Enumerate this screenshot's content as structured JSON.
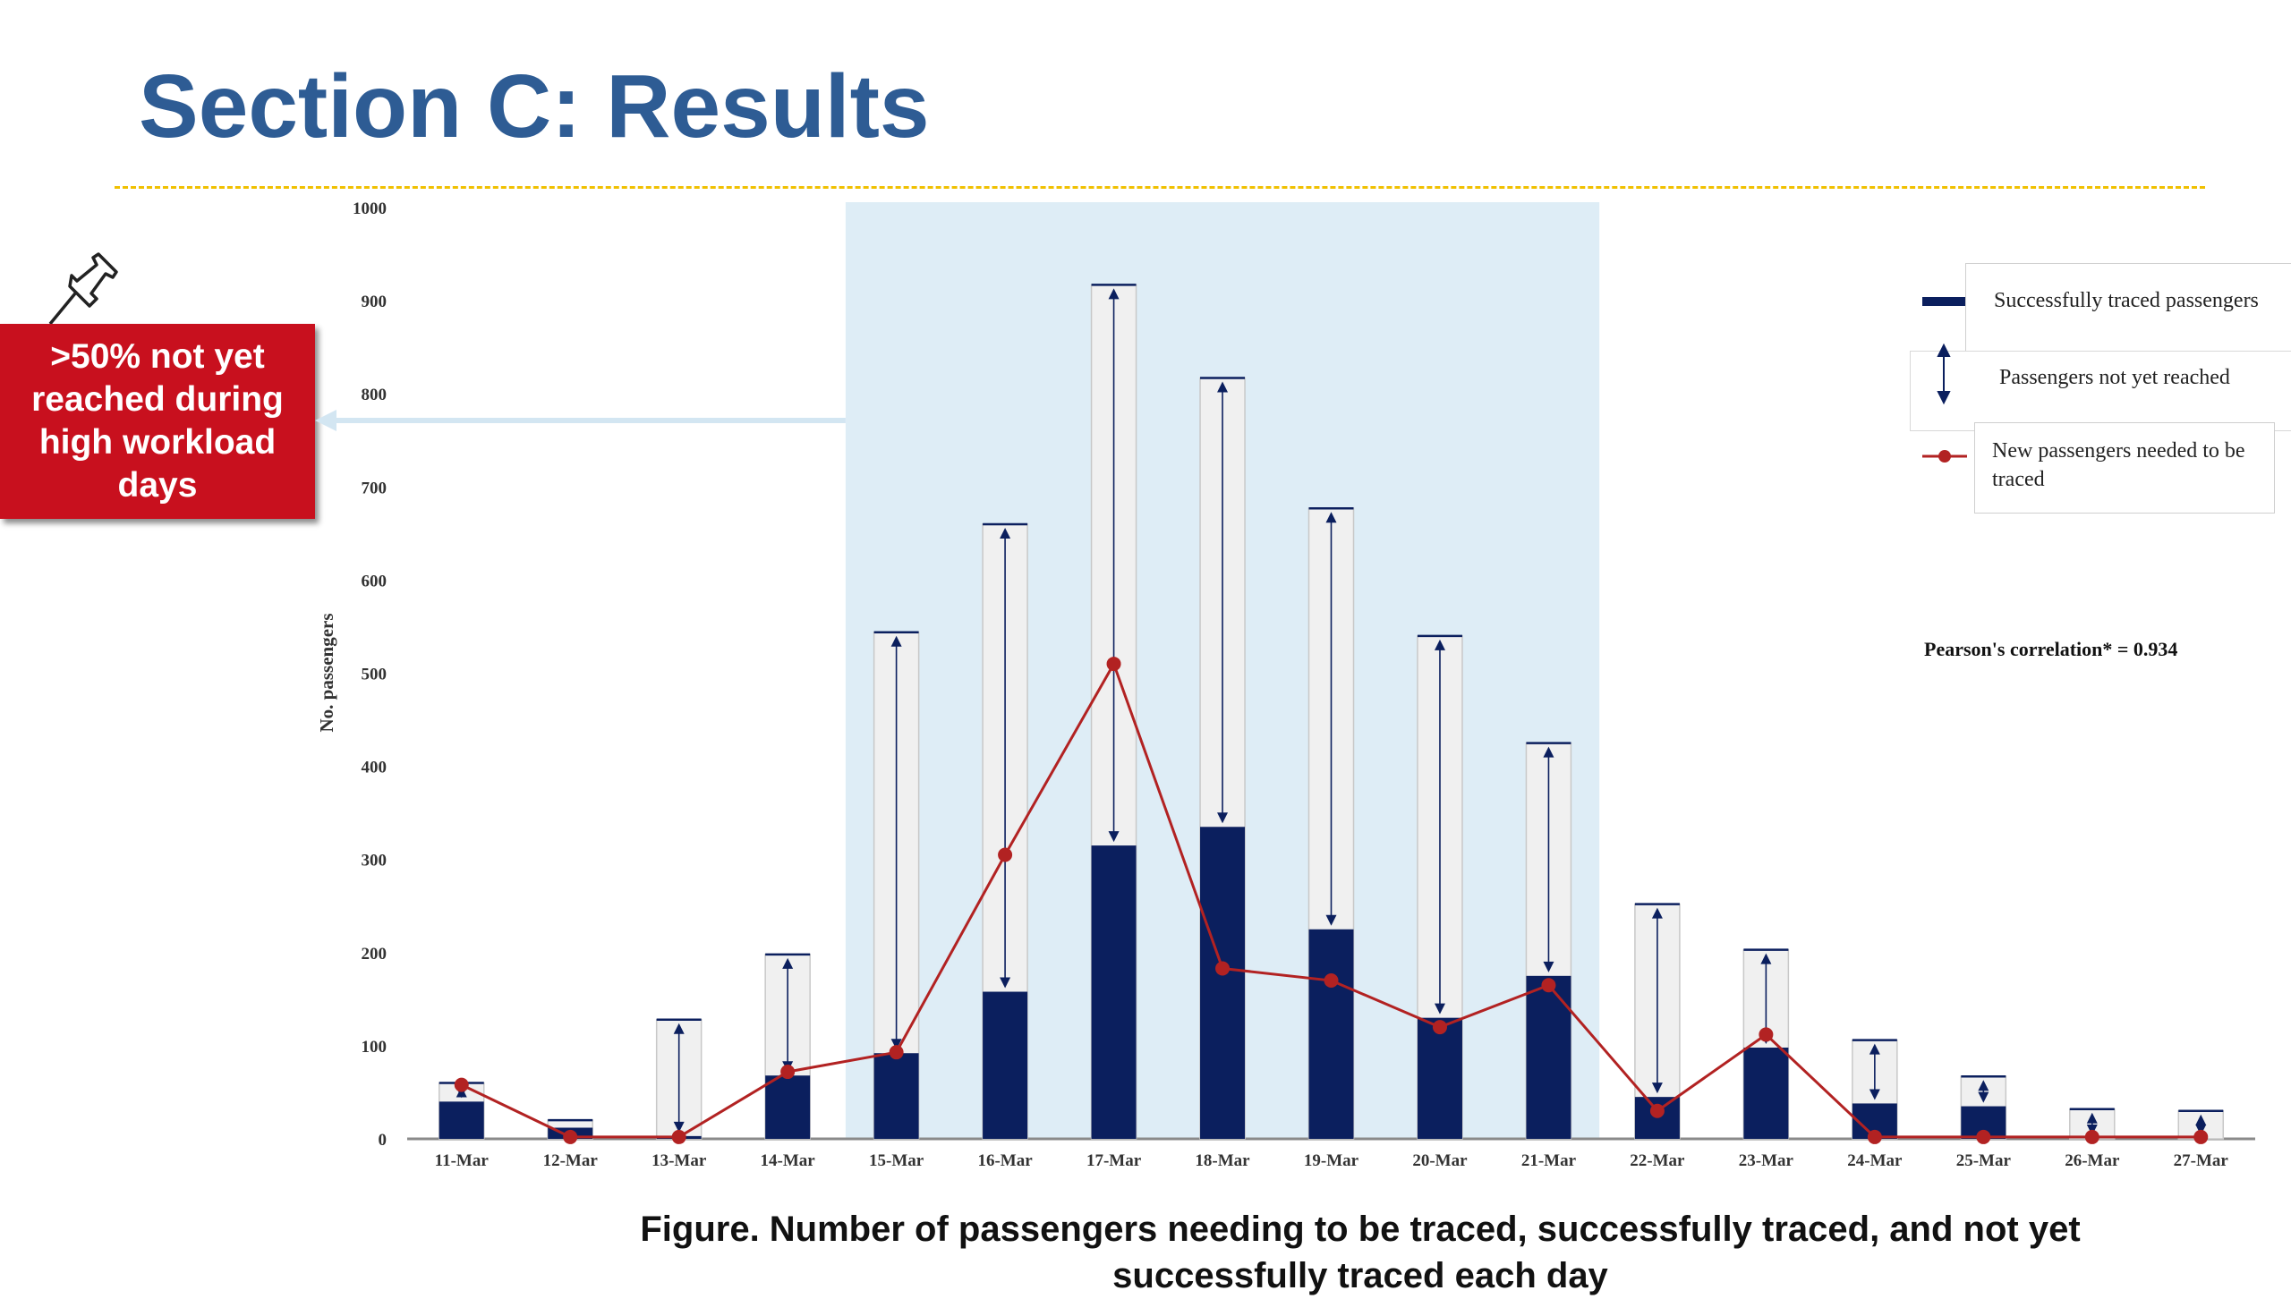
{
  "slide": {
    "title": "Section C: Results",
    "callout": ">50% not yet reached during high workload days",
    "caption": "Figure. Number of passengers needing to be traced, successfully traced, and not yet successfully traced each day",
    "pearson": "Pearson's correlation* = 0.934"
  },
  "colors": {
    "title": "#2e5c94",
    "divider": "#f0c000",
    "callout": "#c8101e",
    "highlight": "#deedf6",
    "traced_bar": "#0b1f5e",
    "total_bar": "#f0f0f0",
    "line": "#b22222",
    "arrow_color": "#0b1f5e"
  },
  "chart_data": {
    "type": "bar",
    "categories": [
      "11-Mar",
      "12-Mar",
      "13-Mar",
      "14-Mar",
      "15-Mar",
      "16-Mar",
      "17-Mar",
      "18-Mar",
      "19-Mar",
      "20-Mar",
      "21-Mar",
      "22-Mar",
      "23-Mar",
      "24-Mar",
      "25-Mar",
      "26-Mar",
      "27-Mar"
    ],
    "ylabel": "No. passengers",
    "ylim": [
      0,
      1000
    ],
    "yticks": [
      0,
      100,
      200,
      300,
      400,
      500,
      600,
      700,
      800,
      900,
      1000
    ],
    "series": [
      {
        "name": "Successfully traced passengers",
        "kind": "bar",
        "values": [
          40,
          12,
          3,
          68,
          92,
          158,
          315,
          335,
          225,
          130,
          175,
          45,
          98,
          38,
          35,
          0,
          0
        ]
      },
      {
        "name": "Passengers not yet reached",
        "kind": "range",
        "values": [
          20,
          8,
          125,
          130,
          452,
          502,
          602,
          482,
          452,
          410,
          250,
          207,
          105,
          68,
          32,
          32,
          30
        ]
      },
      {
        "name": "New passengers needed to be traced",
        "kind": "line",
        "values": [
          58,
          2,
          2,
          72,
          93,
          305,
          510,
          183,
          170,
          120,
          165,
          30,
          112,
          2,
          2,
          2,
          2
        ]
      }
    ],
    "highlight_range": [
      "15-Mar",
      "21-Mar"
    ],
    "legend_position": "top-right"
  }
}
